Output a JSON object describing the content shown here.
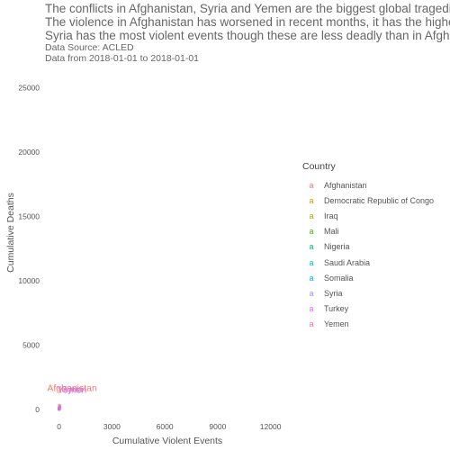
{
  "header": {
    "title_lines": [
      "The conflicts in Afghanistan, Syria and Yemen are the biggest global tragedies",
      "The violence in Afghanistan has worsened in recent months, it has the highest",
      "Syria has the most violent events though these are less deadly than in Afghani"
    ],
    "source": "Data Source: ACLED",
    "range": "Data from 2018-01-01 to 2018-01-01"
  },
  "chart_data": {
    "type": "scatter",
    "xlabel": "Cumulative Violent Events",
    "ylabel": "Cumulative Deaths",
    "xlim": [
      -900,
      13500
    ],
    "ylim": [
      -500,
      26000
    ],
    "xticks": [
      0,
      3000,
      6000,
      9000,
      12000
    ],
    "yticks": [
      0,
      5000,
      10000,
      15000,
      20000,
      25000
    ],
    "grid": false,
    "legend_title": "Country",
    "legend_position": "right",
    "key_glyph": "a",
    "series": [
      {
        "name": "Afghanistan",
        "color": "#F8766D",
        "x": 25,
        "y": 300,
        "label": "Afghanistan"
      },
      {
        "name": "Democratic Republic of Congo",
        "color": "#D89000",
        "x": 12,
        "y": 60
      },
      {
        "name": "Iraq",
        "color": "#A3A500",
        "x": 15,
        "y": 70
      },
      {
        "name": "Mali",
        "color": "#39B600",
        "x": 8,
        "y": 40
      },
      {
        "name": "Nigeria",
        "color": "#00BF7D",
        "x": 14,
        "y": 120
      },
      {
        "name": "Saudi Arabia",
        "color": "#00BFC4",
        "x": 6,
        "y": 10
      },
      {
        "name": "Somalia",
        "color": "#00B0F6",
        "x": 12,
        "y": 60
      },
      {
        "name": "Syria",
        "color": "#9590FF",
        "x": 35,
        "y": 200,
        "label": "Syria"
      },
      {
        "name": "Turkey",
        "color": "#E76BF3",
        "x": 10,
        "y": 20
      },
      {
        "name": "Yemen",
        "color": "#FF62BC",
        "x": 22,
        "y": 150,
        "label": "Yemen"
      }
    ]
  }
}
